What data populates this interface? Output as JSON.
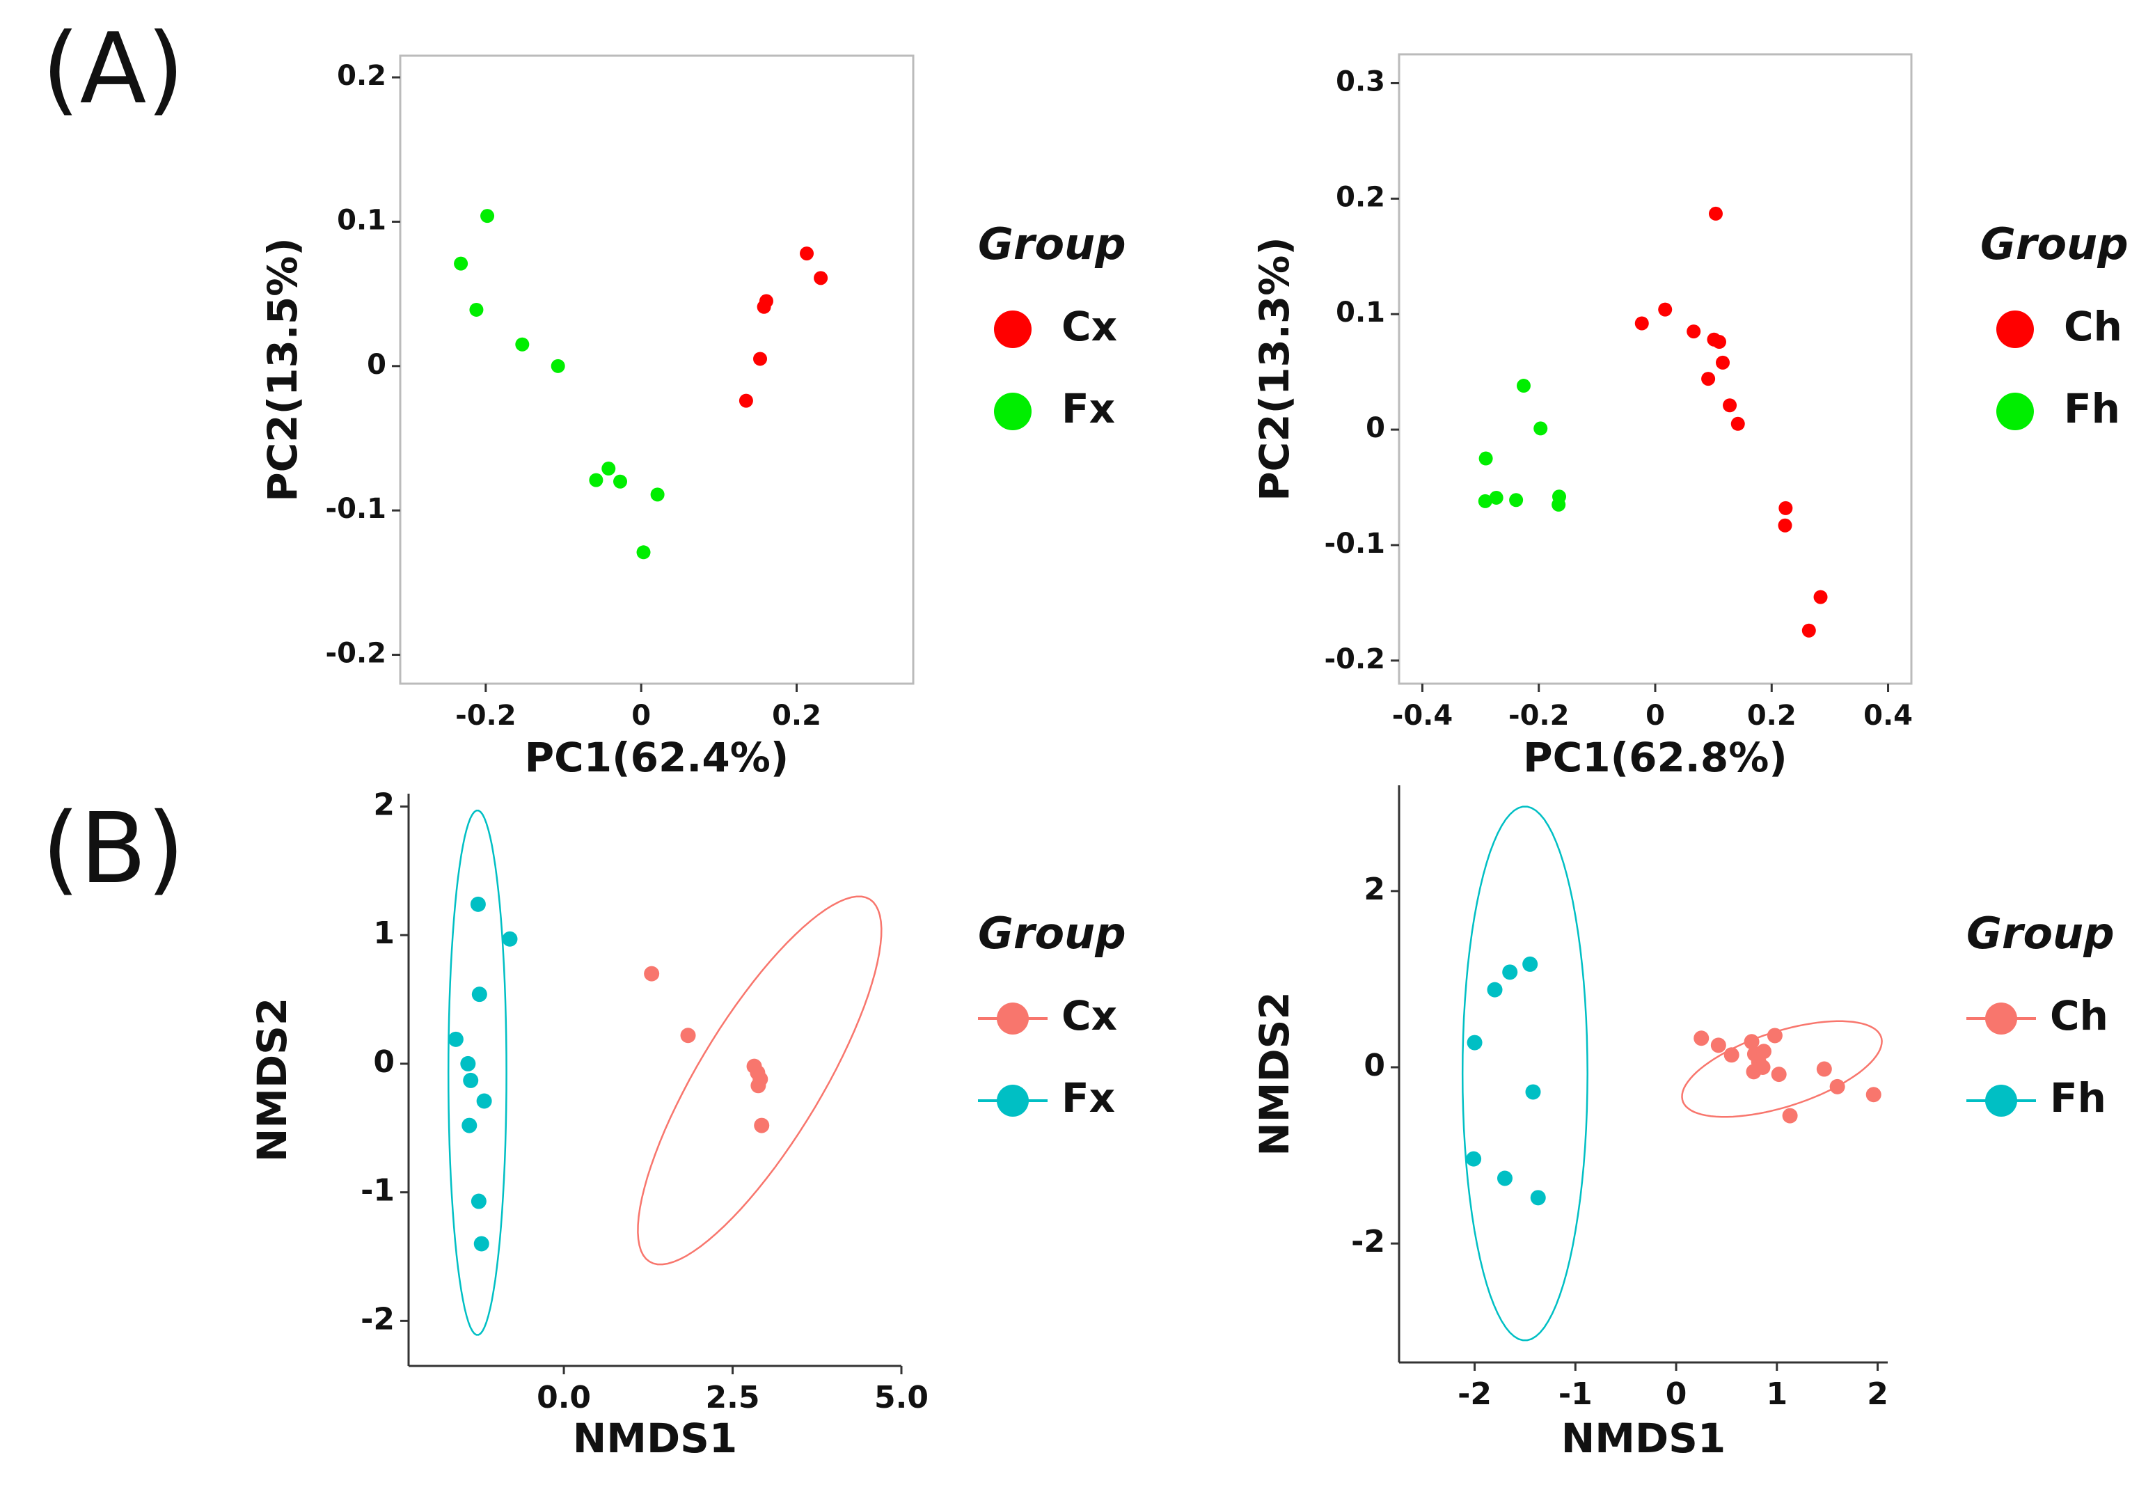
{
  "panel_labels": {
    "a": "(A)",
    "b": "(B)"
  },
  "colors": {
    "red": "#ff0000",
    "green": "#00ee00",
    "salmon": "#f8766d",
    "teal": "#00bfc4",
    "box": "#bbbbbb",
    "axis": "#333333"
  },
  "chart_data": [
    {
      "type": "scatter",
      "xlabel": "PC1(62.4%)",
      "ylabel": "PC2(13.5%)",
      "xlim": [
        -0.31,
        0.35
      ],
      "ylim": [
        -0.22,
        0.215
      ],
      "xticks": [
        -0.2,
        0,
        0.2
      ],
      "xtick_labels": [
        "-0.2",
        "0",
        "0.2"
      ],
      "yticks": [
        -0.2,
        -0.1,
        0,
        0.1,
        0.2
      ],
      "ytick_labels": [
        "-0.2",
        "-0.1",
        "0",
        "0.1",
        "0.2"
      ],
      "legend_title": "Group",
      "series": [
        {
          "name": "Cx",
          "color": "#ff0000",
          "x": [
            0.213,
            0.231,
            0.161,
            0.158,
            0.153,
            0.135
          ],
          "y": [
            0.078,
            0.061,
            0.045,
            0.041,
            0.005,
            -0.024
          ]
        },
        {
          "name": "Fx",
          "color": "#00ee00",
          "x": [
            -0.198,
            -0.232,
            -0.212,
            -0.153,
            -0.107,
            -0.042,
            -0.058,
            -0.027,
            0.021,
            0.003
          ],
          "y": [
            0.104,
            0.071,
            0.039,
            0.015,
            0.0,
            -0.071,
            -0.079,
            -0.08,
            -0.089,
            -0.129
          ]
        }
      ]
    },
    {
      "type": "scatter",
      "xlabel": "PC1(62.8%)",
      "ylabel": "PC2(13.3%)",
      "xlim": [
        -0.44,
        0.44
      ],
      "ylim": [
        -0.22,
        0.325
      ],
      "xticks": [
        -0.4,
        -0.2,
        0,
        0.2,
        0.4
      ],
      "xtick_labels": [
        "-0.4",
        "-0.2",
        "0",
        "0.2",
        "0.4"
      ],
      "yticks": [
        -0.2,
        -0.1,
        0,
        0.1,
        0.2,
        0.3
      ],
      "ytick_labels": [
        "-0.2",
        "-0.1",
        "0",
        "0.1",
        "0.2",
        "0.3"
      ],
      "legend_title": "Group",
      "series": [
        {
          "name": "Ch",
          "color": "#ff0000",
          "x": [
            0.104,
            0.017,
            -0.023,
            0.066,
            0.101,
            0.11,
            0.116,
            0.091,
            0.128,
            0.142,
            0.224,
            0.223,
            0.284,
            0.264
          ],
          "y": [
            0.187,
            0.104,
            0.092,
            0.085,
            0.078,
            0.076,
            0.058,
            0.044,
            0.021,
            0.005,
            -0.068,
            -0.083,
            -0.145,
            -0.174
          ]
        },
        {
          "name": "Fh",
          "color": "#00ee00",
          "x": [
            -0.226,
            -0.197,
            -0.291,
            -0.292,
            -0.273,
            -0.239,
            -0.165,
            -0.166
          ],
          "y": [
            0.038,
            0.001,
            -0.025,
            -0.062,
            -0.059,
            -0.061,
            -0.058,
            -0.065
          ]
        }
      ]
    },
    {
      "type": "scatter",
      "xlabel": "NMDS1",
      "ylabel": "NMDS2",
      "xlim": [
        -2.3,
        5.0
      ],
      "ylim": [
        -2.35,
        2.1
      ],
      "xticks": [
        0,
        2.5,
        5
      ],
      "xtick_labels": [
        "0.0",
        "2.5",
        "5.0"
      ],
      "yticks": [
        -2,
        -1,
        0,
        1,
        2
      ],
      "ytick_labels": [
        "-2",
        "-1",
        "0",
        "1",
        "2"
      ],
      "legend_title": "Group",
      "series": [
        {
          "name": "Cx",
          "color": "#f8766d",
          "x": [
            1.3,
            1.84,
            2.82,
            2.87,
            2.91,
            2.88,
            2.93
          ],
          "y": [
            0.7,
            0.22,
            -0.02,
            -0.07,
            -0.12,
            -0.17,
            -0.48
          ],
          "ellipse": {
            "cx": 2.9,
            "cy": -0.13,
            "rx": 2.2,
            "ry": 0.68,
            "angle_deg": 37
          }
        },
        {
          "name": "Fx",
          "color": "#00bfc4",
          "x": [
            -1.27,
            -0.8,
            -1.25,
            -1.6,
            -1.42,
            -1.38,
            -1.18,
            -1.4,
            -1.26,
            -1.22
          ],
          "y": [
            1.24,
            0.97,
            0.54,
            0.19,
            0.0,
            -0.13,
            -0.29,
            -0.48,
            -1.07,
            -1.4
          ],
          "ellipse": {
            "cx": -1.28,
            "cy": -0.07,
            "rx": 0.43,
            "ry": 2.04,
            "angle_deg": 0
          }
        }
      ]
    },
    {
      "type": "scatter",
      "xlabel": "NMDS1",
      "ylabel": "NMDS2",
      "xlim": [
        -2.75,
        2.1
      ],
      "ylim": [
        -3.35,
        3.2
      ],
      "xticks": [
        -2,
        -1,
        0,
        1,
        2
      ],
      "xtick_labels": [
        "-2",
        "-1",
        "0",
        "1",
        "2"
      ],
      "yticks": [
        -2,
        0,
        2
      ],
      "ytick_labels": [
        "-2",
        "0",
        "2"
      ],
      "legend_title": "Group",
      "series": [
        {
          "name": "Ch",
          "color": "#f8766d",
          "x": [
            0.25,
            0.42,
            0.55,
            0.75,
            0.98,
            0.78,
            0.87,
            0.82,
            1.47,
            0.77,
            1.02,
            0.86,
            1.6,
            1.96,
            1.13
          ],
          "y": [
            0.33,
            0.25,
            0.14,
            0.29,
            0.36,
            0.15,
            0.18,
            0.06,
            -0.02,
            -0.05,
            -0.08,
            0.0,
            -0.22,
            -0.31,
            -0.55
          ],
          "ellipse": {
            "cx": 1.05,
            "cy": -0.02,
            "rx": 1.05,
            "ry": 0.42,
            "angle_deg": 21
          }
        },
        {
          "name": "Fh",
          "color": "#00bfc4",
          "x": [
            -1.45,
            -1.65,
            -1.8,
            -2.0,
            -1.42,
            -2.01,
            -1.7,
            -1.37
          ],
          "y": [
            1.17,
            1.08,
            0.88,
            0.28,
            -0.28,
            -1.04,
            -1.26,
            -1.48
          ],
          "ellipse": {
            "cx": -1.5,
            "cy": -0.07,
            "rx": 0.62,
            "ry": 3.03,
            "angle_deg": 0
          }
        }
      ]
    }
  ]
}
